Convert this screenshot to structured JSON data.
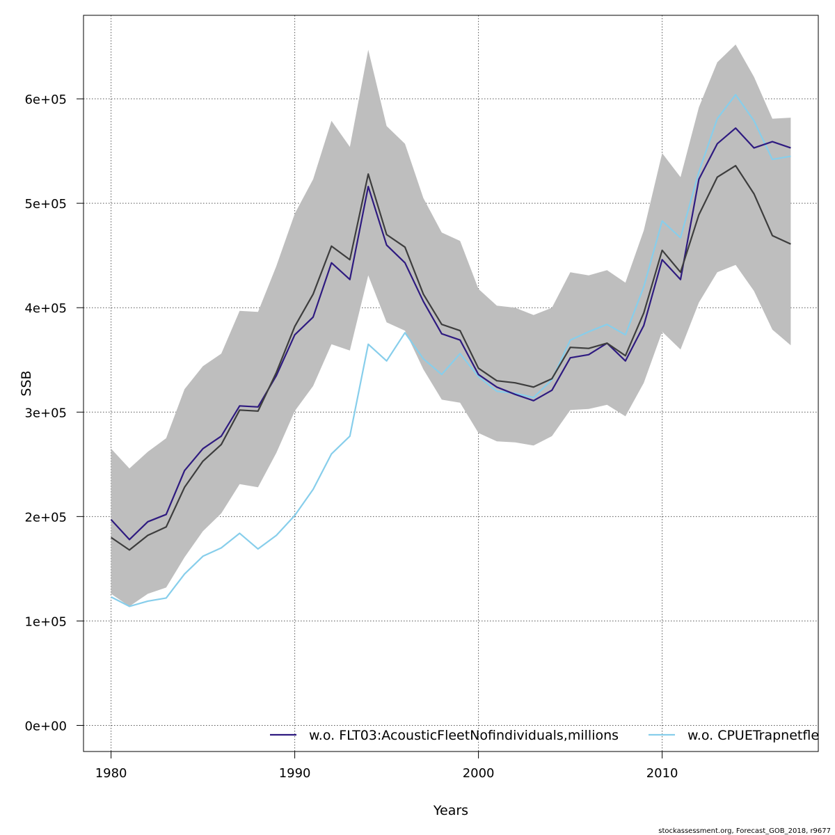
{
  "chart_data": {
    "type": "line",
    "xlabel": "Years",
    "ylabel": "SSB",
    "xlim": [
      1978.5,
      2018.5
    ],
    "ylim": [
      -25000,
      680000
    ],
    "x_ticks": [
      1980,
      1990,
      2000,
      2010
    ],
    "y_ticks": [
      0,
      100000,
      200000,
      300000,
      400000,
      500000,
      600000
    ],
    "y_tick_labels": [
      "0e+00",
      "1e+05",
      "2e+05",
      "3e+05",
      "4e+05",
      "5e+05",
      "6e+05"
    ],
    "grid": true,
    "x": [
      1980,
      1981,
      1982,
      1983,
      1984,
      1985,
      1986,
      1987,
      1988,
      1989,
      1990,
      1991,
      1992,
      1993,
      1994,
      1995,
      1996,
      1997,
      1998,
      1999,
      2000,
      2001,
      2002,
      2003,
      2004,
      2005,
      2006,
      2007,
      2008,
      2009,
      2010,
      2011,
      2012,
      2013,
      2014,
      2015,
      2016,
      2017
    ],
    "band": {
      "upper": [
        265000,
        246000,
        262000,
        275000,
        322000,
        344000,
        356000,
        397000,
        396000,
        440000,
        490000,
        523000,
        579000,
        554000,
        647000,
        574000,
        557000,
        505000,
        472000,
        464000,
        418000,
        402000,
        400000,
        393000,
        400000,
        434000,
        431000,
        436000,
        424000,
        474000,
        548000,
        525000,
        592000,
        635000,
        652000,
        621000,
        581000,
        582000
      ],
      "lower": [
        126000,
        114000,
        126000,
        132000,
        161000,
        186000,
        203000,
        231000,
        228000,
        261000,
        301000,
        325000,
        365000,
        359000,
        431000,
        386000,
        378000,
        341000,
        312000,
        309000,
        280000,
        272000,
        271000,
        268000,
        277000,
        302000,
        303000,
        307000,
        296000,
        328000,
        377000,
        360000,
        405000,
        434000,
        441000,
        416000,
        379000,
        364000
      ],
      "color": "#bebebe"
    },
    "central": {
      "values": [
        180000,
        168000,
        182000,
        190000,
        228000,
        253000,
        269000,
        302000,
        301000,
        338000,
        382000,
        413000,
        459000,
        446000,
        528000,
        470000,
        458000,
        413000,
        384000,
        378000,
        342000,
        330000,
        328000,
        324000,
        332000,
        362000,
        361000,
        366000,
        354000,
        395000,
        455000,
        434000,
        489000,
        525000,
        536000,
        509000,
        469000,
        461000
      ],
      "color": "#3d3d3d"
    },
    "series": [
      {
        "name": "w.o. FLT03:AcousticFleetNofindividuals,millions",
        "color": "#2e1a80",
        "values": [
          197000,
          178000,
          195000,
          202000,
          244000,
          265000,
          277000,
          306000,
          305000,
          335000,
          374000,
          391000,
          443000,
          427000,
          516000,
          460000,
          443000,
          406000,
          375000,
          369000,
          336000,
          324000,
          317000,
          311000,
          321000,
          352000,
          355000,
          366000,
          349000,
          383000,
          446000,
          427000,
          523000,
          557000,
          572000,
          553000,
          559000,
          553000
        ]
      },
      {
        "name": "w.o. CPUETrapnetfleet",
        "color": "#87ceeb",
        "values": [
          123000,
          114000,
          119000,
          122000,
          145000,
          162000,
          170000,
          184000,
          169000,
          182000,
          201000,
          226000,
          260000,
          277000,
          365000,
          349000,
          376000,
          351000,
          336000,
          356000,
          334000,
          320000,
          318000,
          314000,
          331000,
          369000,
          377000,
          384000,
          374000,
          420000,
          483000,
          467000,
          530000,
          581000,
          604000,
          579000,
          542000,
          545000
        ]
      }
    ],
    "legend_position": "bottom"
  },
  "footer": "stockassessment.org, Forecast_GOB_2018, r9677"
}
